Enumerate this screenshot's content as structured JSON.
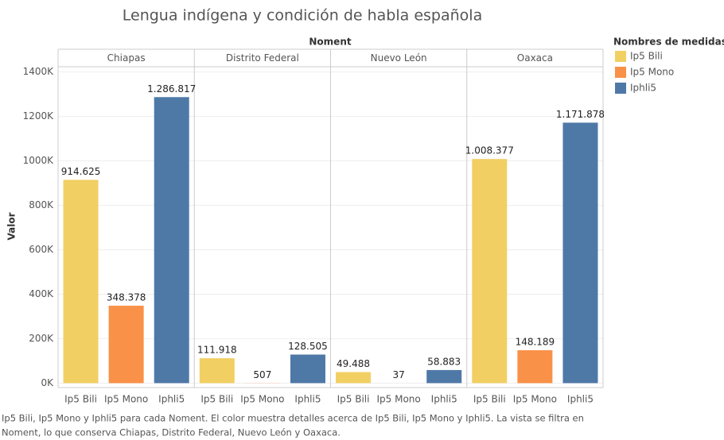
{
  "chart_data": {
    "type": "bar",
    "title": "Lengua indígena y condición de habla española",
    "facet_label": "Noment",
    "facets": [
      "Chiapas",
      "Distrito Federal",
      "Nuevo León",
      "Oaxaca"
    ],
    "y_label": "Valor",
    "legend_title": "Nombres de medidas",
    "series": [
      {
        "name": "Ip5 Bili",
        "color": "#f2cf63",
        "values": [
          914625,
          111918,
          49488,
          1008377
        ],
        "value_labels": [
          "914.625",
          "111.918",
          "49.488",
          "1.008.377"
        ]
      },
      {
        "name": "Ip5 Mono",
        "color": "#f99148",
        "values": [
          348378,
          507,
          37,
          148189
        ],
        "value_labels": [
          "348.378",
          "507",
          "37",
          "148.189"
        ]
      },
      {
        "name": "Iphli5",
        "color": "#4e79a7",
        "values": [
          1286817,
          128505,
          58883,
          1171878
        ],
        "value_labels": [
          "1.286.817",
          "128.505",
          "58.883",
          "1.171.878"
        ]
      }
    ],
    "ylim": [
      -20000,
      1420000
    ],
    "yticks": [
      {
        "value": 0,
        "label": "0K"
      },
      {
        "value": 200000,
        "label": "200K"
      },
      {
        "value": 400000,
        "label": "400K"
      },
      {
        "value": 600000,
        "label": "600K"
      },
      {
        "value": 800000,
        "label": "800K"
      },
      {
        "value": 1000000,
        "label": "1000K"
      },
      {
        "value": 1200000,
        "label": "1200K"
      },
      {
        "value": 1400000,
        "label": "1400K"
      }
    ],
    "grid": true,
    "caption": [
      "Ip5 Bili, Ip5 Mono y Iphli5 para cada Noment.  El color muestra detalles acerca de Ip5 Bili, Ip5 Mono y Iphli5. La vista se filtra en",
      "Noment, lo que conserva Chiapas, Distrito Federal, Nuevo León y Oaxaca."
    ]
  }
}
